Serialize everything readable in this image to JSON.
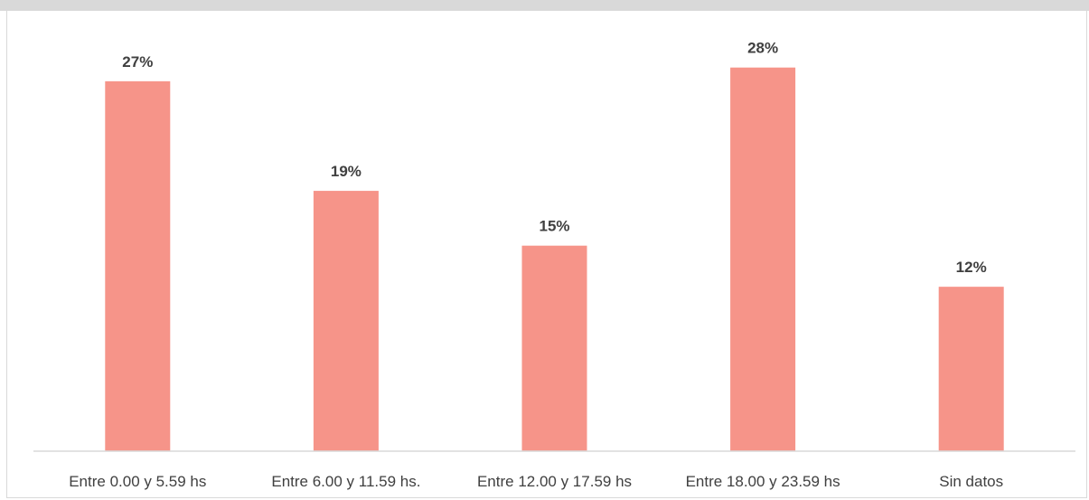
{
  "chart_data": {
    "type": "bar",
    "title": "",
    "xlabel": "",
    "ylabel": "",
    "categories": [
      "Entre 0.00 y 5.59 hs",
      "Entre 6.00 y 11.59 hs.",
      "Entre 12.00 y 17.59 hs",
      "Entre 18.00 y 23.59 hs",
      "Sin datos"
    ],
    "values": [
      27,
      19,
      15,
      28,
      12
    ],
    "value_labels": [
      "27%",
      "19%",
      "15%",
      "28%",
      "12%"
    ],
    "unit": "%",
    "ylim": [
      0,
      29.3
    ],
    "grid": false,
    "legend": "none",
    "colors": {
      "bar": "#f69489",
      "axis": "#d9d9d9",
      "text": "#404040"
    }
  }
}
